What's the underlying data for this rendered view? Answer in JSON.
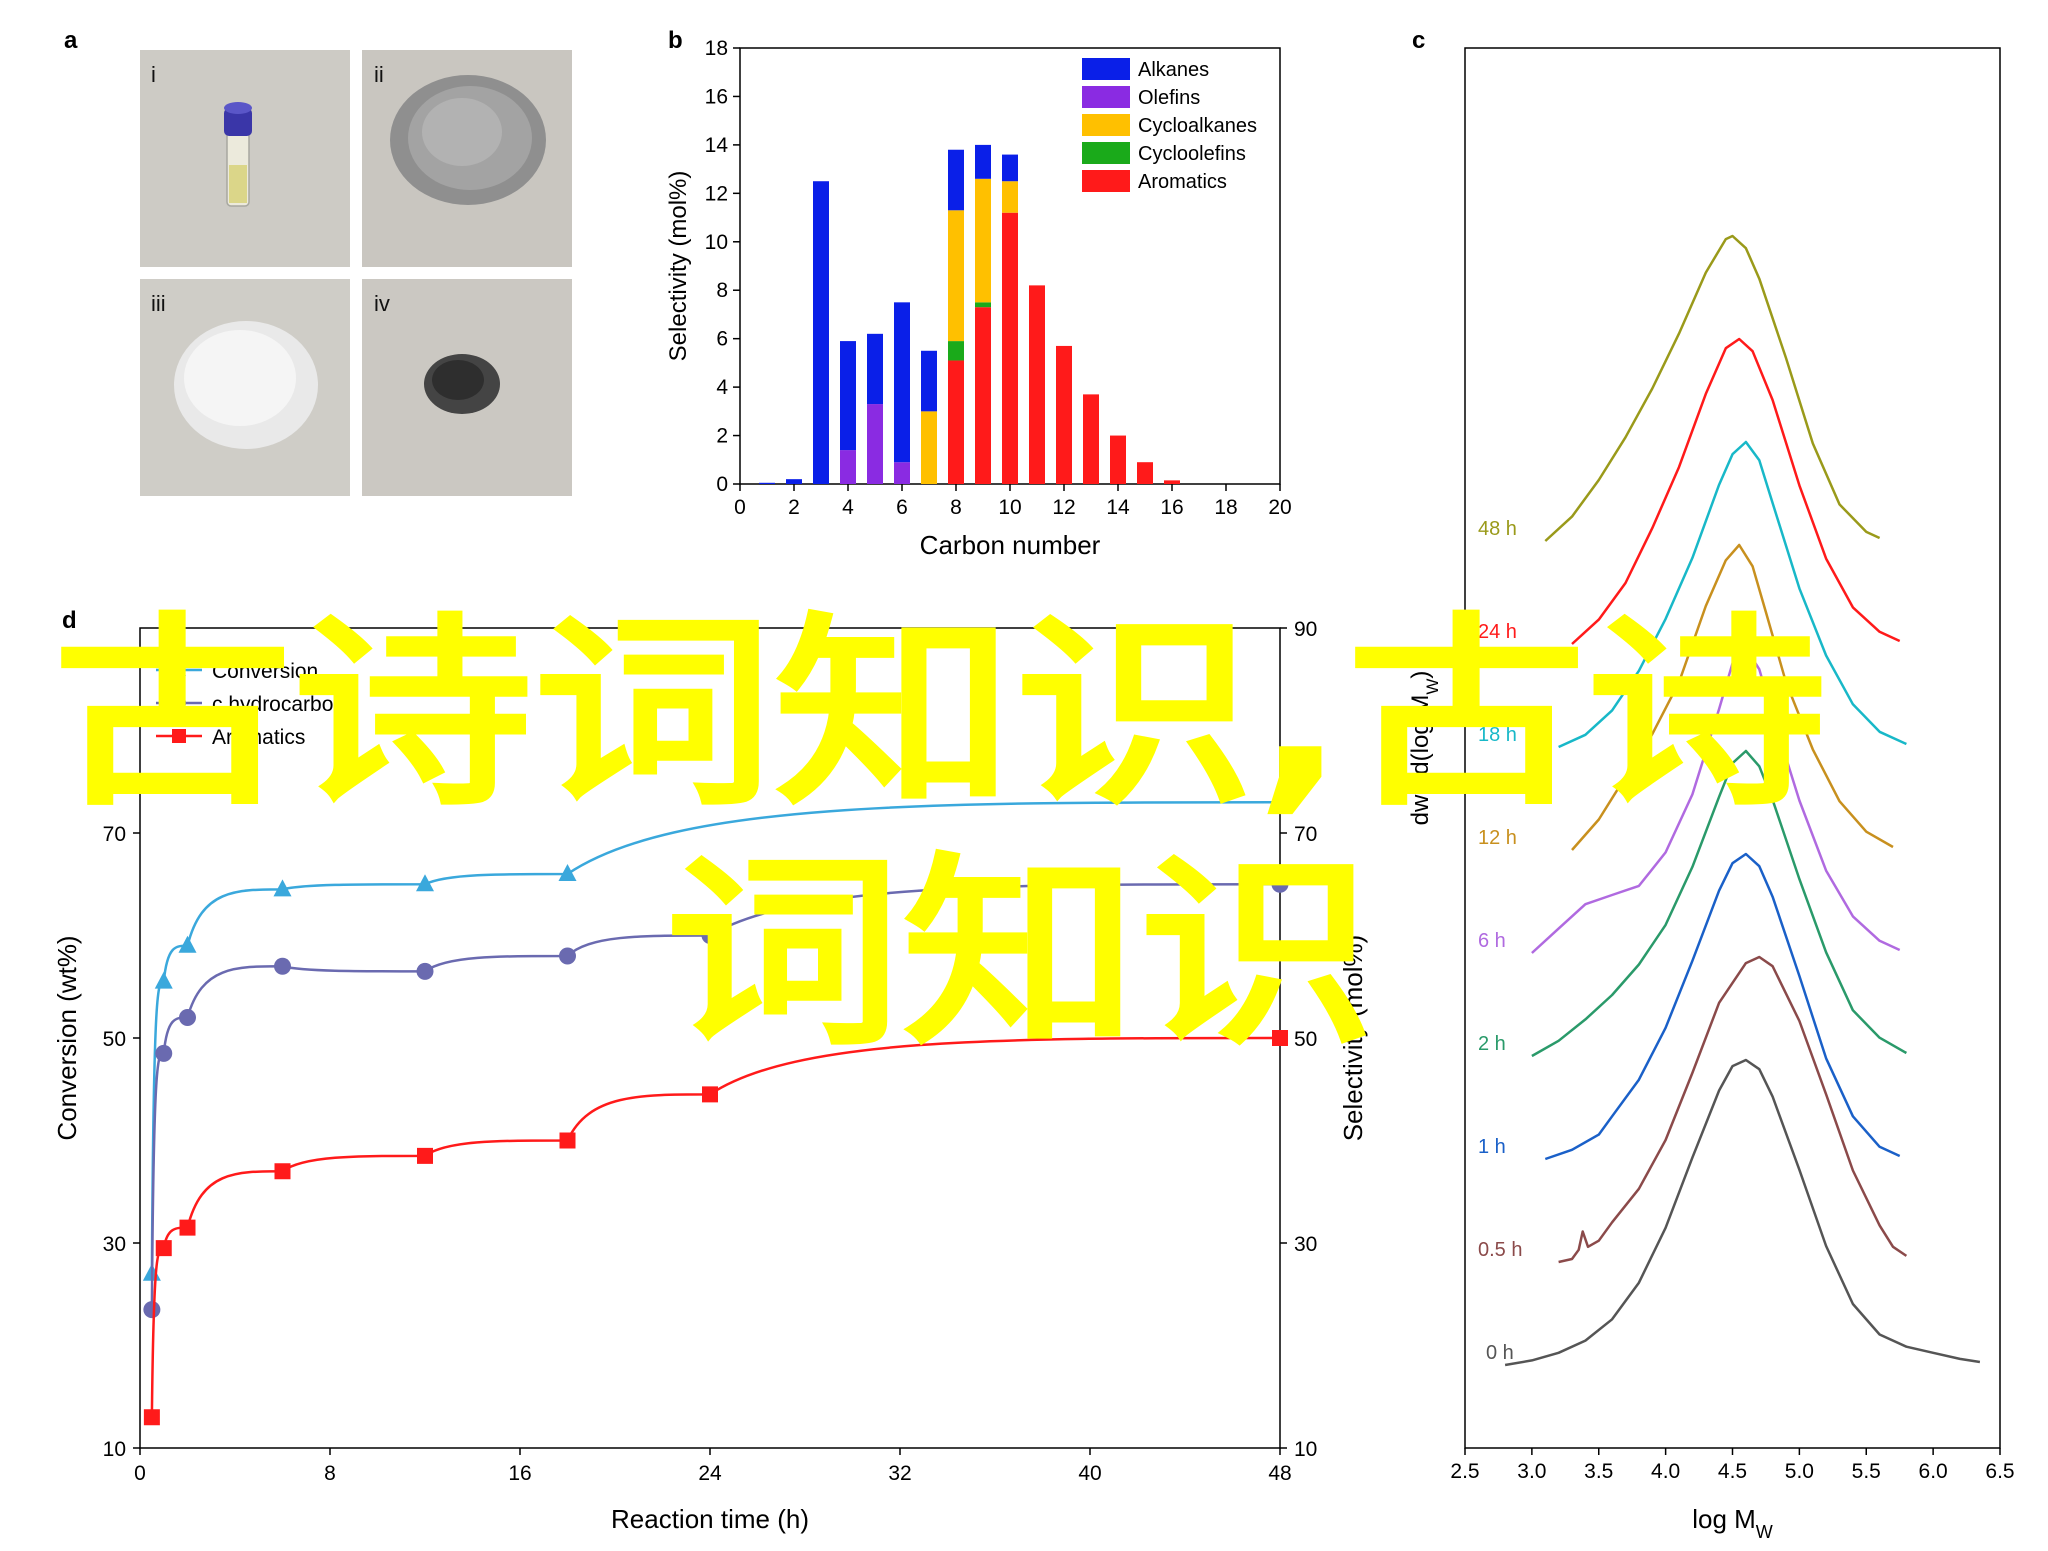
{
  "panels": {
    "a": {
      "label": "a",
      "tiles": [
        {
          "label": "i",
          "sample": "vial"
        },
        {
          "label": "ii",
          "sample": "gray-powder"
        },
        {
          "label": "iii",
          "sample": "white-powder"
        },
        {
          "label": "iv",
          "sample": "dark-powder"
        }
      ]
    },
    "b": {
      "label": "b"
    },
    "c": {
      "label": "c"
    },
    "d": {
      "label": "d"
    }
  },
  "overlay_text": {
    "line1": "古诗词知识,古诗",
    "line2": "词知识"
  },
  "colors": {
    "alkanes": "#0a1fe8",
    "olefins": "#8a2be2",
    "cycloalkanes": "#ffc000",
    "cycloolefins": "#1aaa1a",
    "aromatics": "#ff1a1a",
    "conversion": "#3aa8dc",
    "hydrocarbon": "#6a6ab0",
    "overlay": "#ffff00"
  },
  "chart_data": [
    {
      "id": "b",
      "type": "bar",
      "stacked": true,
      "xlabel": "Carbon number",
      "ylabel": "Selectivity (mol%)",
      "xlim": [
        0,
        20
      ],
      "ylim": [
        0,
        18
      ],
      "xticks": [
        0,
        2,
        4,
        6,
        8,
        10,
        12,
        14,
        16,
        18,
        20
      ],
      "yticks": [
        0,
        2,
        4,
        6,
        8,
        10,
        12,
        14,
        16,
        18
      ],
      "categories": [
        1,
        2,
        3,
        4,
        5,
        6,
        7,
        8,
        9,
        10,
        11,
        12,
        13,
        14,
        15,
        16
      ],
      "series": [
        {
          "name": "Aromatics",
          "color_key": "aromatics",
          "values": [
            0,
            0,
            0,
            0,
            0,
            0,
            0,
            5.1,
            7.3,
            11.2,
            8.2,
            5.7,
            3.7,
            2.0,
            0.9,
            0.15
          ]
        },
        {
          "name": "Cycloolefins",
          "color_key": "cycloolefins",
          "values": [
            0,
            0,
            0,
            0,
            0,
            0,
            0,
            0.8,
            0.2,
            0,
            0,
            0,
            0,
            0,
            0,
            0
          ]
        },
        {
          "name": "Cycloalkanes",
          "color_key": "cycloalkanes",
          "values": [
            0,
            0,
            0,
            0,
            0,
            0,
            3.0,
            5.4,
            5.1,
            1.3,
            0,
            0,
            0,
            0,
            0,
            0
          ]
        },
        {
          "name": "Olefins",
          "color_key": "olefins",
          "values": [
            0,
            0,
            0,
            1.4,
            3.3,
            0.9,
            0,
            0,
            0,
            0,
            0,
            0,
            0,
            0,
            0,
            0
          ]
        },
        {
          "name": "Alkanes",
          "color_key": "alkanes",
          "values": [
            0.05,
            0.2,
            12.5,
            4.5,
            2.9,
            6.6,
            2.5,
            2.5,
            1.4,
            1.1,
            0,
            0,
            0,
            0,
            0,
            0
          ]
        }
      ],
      "legend_order": [
        "Alkanes",
        "Olefins",
        "Cycloalkanes",
        "Cycloolefins",
        "Aromatics"
      ],
      "legend": "top-right"
    },
    {
      "id": "c",
      "type": "line",
      "xlabel": "log M",
      "xlabel_sub": "W",
      "ylabel": "dw / d(log M",
      "ylabel_sub": "W",
      "ylabel_suffix": ")",
      "xlim": [
        2.5,
        6.5
      ],
      "xticks": [
        "2.5",
        "3.0",
        "3.5",
        "4.0",
        "4.5",
        "5.0",
        "5.5",
        "6.0",
        "6.5"
      ],
      "series": [
        {
          "name": "0 h",
          "color": "#555555",
          "offset": 0,
          "x": [
            2.8,
            3.0,
            3.2,
            3.4,
            3.6,
            3.8,
            4.0,
            4.2,
            4.4,
            4.5,
            4.6,
            4.7,
            4.8,
            5.0,
            5.2,
            5.4,
            5.6,
            5.8,
            6.0,
            6.2,
            6.35
          ],
          "y": [
            0,
            0.015,
            0.04,
            0.08,
            0.15,
            0.27,
            0.45,
            0.68,
            0.9,
            0.98,
            1.0,
            0.97,
            0.88,
            0.64,
            0.39,
            0.2,
            0.1,
            0.06,
            0.04,
            0.02,
            0.01
          ]
        },
        {
          "name": "0.5 h",
          "color": "#8b4a4a",
          "offset": 1,
          "x": [
            3.2,
            3.3,
            3.35,
            3.38,
            3.42,
            3.5,
            3.6,
            3.8,
            4.0,
            4.2,
            4.4,
            4.6,
            4.7,
            4.8,
            5.0,
            5.2,
            5.4,
            5.6,
            5.7,
            5.8
          ],
          "y": [
            0,
            0.01,
            0.04,
            0.1,
            0.05,
            0.07,
            0.13,
            0.24,
            0.4,
            0.62,
            0.85,
            0.98,
            1.0,
            0.97,
            0.79,
            0.55,
            0.3,
            0.12,
            0.05,
            0.02
          ]
        },
        {
          "name": "1 h",
          "color": "#1a60c8",
          "offset": 2,
          "x": [
            3.1,
            3.3,
            3.5,
            3.6,
            3.8,
            4.0,
            4.2,
            4.4,
            4.5,
            4.6,
            4.7,
            4.8,
            5.0,
            5.2,
            5.4,
            5.6,
            5.75
          ],
          "y": [
            0,
            0.03,
            0.08,
            0.14,
            0.26,
            0.43,
            0.65,
            0.88,
            0.97,
            1.0,
            0.96,
            0.86,
            0.6,
            0.33,
            0.14,
            0.04,
            0.01
          ]
        },
        {
          "name": "2 h",
          "color": "#2a9a6a",
          "offset": 3,
          "x": [
            3.0,
            3.2,
            3.4,
            3.6,
            3.8,
            4.0,
            4.2,
            4.4,
            4.5,
            4.6,
            4.7,
            4.8,
            5.0,
            5.2,
            5.4,
            5.6,
            5.8
          ],
          "y": [
            0,
            0.05,
            0.12,
            0.2,
            0.3,
            0.43,
            0.62,
            0.85,
            0.96,
            1.0,
            0.95,
            0.84,
            0.58,
            0.34,
            0.15,
            0.06,
            0.01
          ]
        },
        {
          "name": "6 h",
          "color": "#b06ae0",
          "offset": 4,
          "x": [
            3.0,
            3.2,
            3.4,
            3.6,
            3.8,
            4.0,
            4.2,
            4.4,
            4.5,
            4.6,
            4.7,
            4.8,
            5.0,
            5.2,
            5.4,
            5.6,
            5.75
          ],
          "y": [
            0,
            0.08,
            0.16,
            0.19,
            0.22,
            0.33,
            0.52,
            0.8,
            0.95,
            1.0,
            0.93,
            0.78,
            0.5,
            0.27,
            0.12,
            0.04,
            0.01
          ]
        },
        {
          "name": "12 h",
          "color": "#c8901e",
          "offset": 5,
          "x": [
            3.3,
            3.5,
            3.7,
            3.9,
            4.1,
            4.3,
            4.45,
            4.55,
            4.65,
            4.75,
            4.9,
            5.1,
            5.3,
            5.5,
            5.7
          ],
          "y": [
            0,
            0.1,
            0.24,
            0.38,
            0.55,
            0.8,
            0.95,
            1.0,
            0.93,
            0.78,
            0.55,
            0.33,
            0.16,
            0.06,
            0.01
          ]
        },
        {
          "name": "18 h",
          "color": "#18b8c8",
          "offset": 6,
          "x": [
            3.2,
            3.4,
            3.6,
            3.8,
            4.0,
            4.2,
            4.4,
            4.5,
            4.6,
            4.7,
            4.8,
            5.0,
            5.2,
            5.4,
            5.6,
            5.8
          ],
          "y": [
            0,
            0.04,
            0.12,
            0.25,
            0.42,
            0.62,
            0.86,
            0.96,
            1.0,
            0.94,
            0.8,
            0.52,
            0.3,
            0.14,
            0.05,
            0.01
          ]
        },
        {
          "name": "24 h",
          "color": "#ff1a1a",
          "offset": 7,
          "x": [
            3.3,
            3.5,
            3.7,
            3.9,
            4.1,
            4.3,
            4.45,
            4.55,
            4.65,
            4.8,
            5.0,
            5.2,
            5.4,
            5.6,
            5.75
          ],
          "y": [
            0,
            0.08,
            0.2,
            0.38,
            0.58,
            0.82,
            0.97,
            1.0,
            0.96,
            0.8,
            0.52,
            0.28,
            0.12,
            0.04,
            0.01
          ]
        },
        {
          "name": "48 h",
          "color": "#9a9a1a",
          "offset": 8,
          "x": [
            3.1,
            3.3,
            3.5,
            3.7,
            3.9,
            4.1,
            4.3,
            4.45,
            4.5,
            4.6,
            4.7,
            4.9,
            5.1,
            5.3,
            5.5,
            5.6
          ],
          "y": [
            0,
            0.08,
            0.2,
            0.34,
            0.5,
            0.68,
            0.88,
            0.99,
            1.0,
            0.96,
            0.86,
            0.6,
            0.32,
            0.12,
            0.03,
            0.01
          ]
        }
      ],
      "visible_series_labels": [
        "0 h",
        "0.5 h",
        "1 h",
        "2 h",
        "6 h",
        "12 h",
        "18 h",
        "48 h"
      ]
    },
    {
      "id": "d",
      "type": "scatter",
      "xlabel": "Reaction time (h)",
      "ylabel": "Conversion (wt%)",
      "ylabel_right": "Selectivity (mol%)",
      "xlim": [
        0,
        48
      ],
      "ylim": [
        10,
        90
      ],
      "xticks": [
        0,
        8,
        16,
        24,
        32,
        40,
        48
      ],
      "yticks": [
        10,
        30,
        50,
        70
      ],
      "yticks_right": [
        10,
        30,
        50,
        70,
        90
      ],
      "legend_entries": [
        "Conversion",
        "c hydrocarbon",
        "Aromatics"
      ],
      "legend": "top-left",
      "series": [
        {
          "name": "Conversion",
          "color_key": "conversion",
          "marker": "triangle",
          "x": [
            0.5,
            1,
            2,
            6,
            12,
            18,
            48
          ],
          "y": [
            27,
            55.5,
            59,
            64.5,
            65,
            66,
            73
          ]
        },
        {
          "name": "c hydrocarbon",
          "color_key": "hydrocarbon",
          "marker": "circle",
          "x": [
            0.5,
            1,
            2,
            6,
            12,
            18,
            24,
            48
          ],
          "y": [
            23.5,
            48.5,
            52,
            57,
            56.5,
            58,
            60,
            65
          ]
        },
        {
          "name": "Aromatics",
          "color_key": "aromatics",
          "marker": "square",
          "x": [
            0.5,
            1,
            2,
            6,
            12,
            18,
            24,
            48
          ],
          "y": [
            13,
            29.5,
            31.5,
            37,
            38.5,
            40,
            44.5,
            50
          ]
        }
      ]
    }
  ]
}
